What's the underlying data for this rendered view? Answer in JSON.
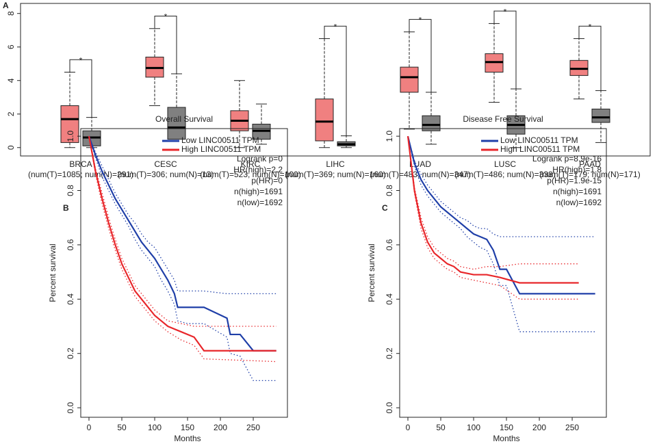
{
  "chart_data": [
    {
      "type": "box",
      "panel": "A",
      "categories": [
        "BRCA",
        "CESC",
        "KIRC",
        "LIHC",
        "LUAD",
        "LUSC",
        "PAAD"
      ],
      "sublabels": [
        "(num(T)=1085; num(N)=291)",
        "(num(T)=306; num(N)=13)",
        "(num(T)=523; num(N)=100)",
        "(num(T)=369; num(N)=160)",
        "(num(T)=483; num(N)=347)",
        "(num(T)=486; num(N)=338)",
        "(num(T)=179; num(N)=171)"
      ],
      "significance": [
        "*",
        "*",
        null,
        "*",
        "*",
        "*",
        "*"
      ],
      "significance_color": "#e8262a",
      "series": [
        {
          "color": "#f08080",
          "whislo": [
            0,
            2.5,
            0,
            0,
            1.1,
            2.7,
            2.9
          ],
          "q1": [
            0.3,
            4.2,
            1.0,
            0.4,
            3.3,
            4.5,
            4.3
          ],
          "med": [
            1.7,
            4.75,
            1.6,
            1.55,
            4.2,
            5.1,
            4.7
          ],
          "q3": [
            2.5,
            5.4,
            2.2,
            2.9,
            4.8,
            5.6,
            5.2
          ],
          "whishi": [
            4.5,
            7.1,
            4.0,
            6.5,
            6.9,
            7.4,
            6.5
          ]
        },
        {
          "color": "#808080",
          "whislo": [
            0,
            0.5,
            0.2,
            0,
            0.2,
            0,
            0.3
          ],
          "q1": [
            0.1,
            0.5,
            0.5,
            0.1,
            1.0,
            0.8,
            1.5
          ],
          "med": [
            0.6,
            1.2,
            1.0,
            0.2,
            1.35,
            1.35,
            1.8
          ],
          "q3": [
            1.0,
            2.4,
            1.4,
            0.35,
            1.9,
            1.9,
            2.3
          ],
          "whishi": [
            1.8,
            4.4,
            2.6,
            0.7,
            3.3,
            3.5,
            3.4
          ]
        }
      ],
      "ylim": [
        -0.5,
        8.6
      ],
      "yticks": [
        0,
        2,
        4,
        6,
        8
      ]
    },
    {
      "type": "survival",
      "panel": "B",
      "title": "Overall Survival",
      "xlabel": "Months",
      "ylabel": "Percent survival",
      "series": [
        {
          "name": "Low LINC00511 TPM",
          "color": "#1f3fa8",
          "x": [
            0,
            10,
            20,
            30,
            40,
            50,
            60,
            70,
            80,
            90,
            100,
            110,
            120,
            130,
            135,
            150,
            175,
            210,
            215,
            230,
            250,
            285
          ],
          "values": [
            1.0,
            0.93,
            0.87,
            0.82,
            0.77,
            0.73,
            0.69,
            0.65,
            0.61,
            0.58,
            0.55,
            0.51,
            0.47,
            0.42,
            0.37,
            0.37,
            0.37,
            0.33,
            0.27,
            0.27,
            0.21,
            0.21
          ],
          "ci_lower": [
            1.0,
            0.92,
            0.85,
            0.8,
            0.75,
            0.71,
            0.67,
            0.62,
            0.58,
            0.55,
            0.52,
            0.47,
            0.43,
            0.38,
            0.32,
            0.31,
            0.31,
            0.26,
            0.2,
            0.19,
            0.1,
            0.1
          ],
          "ci_upper": [
            1.0,
            0.94,
            0.89,
            0.84,
            0.79,
            0.75,
            0.71,
            0.68,
            0.64,
            0.61,
            0.59,
            0.55,
            0.51,
            0.47,
            0.43,
            0.43,
            0.43,
            0.42,
            0.42,
            0.42,
            0.42,
            0.42
          ]
        },
        {
          "name": "High LINC00511 TPM",
          "color": "#e8262a",
          "x": [
            0,
            10,
            20,
            30,
            40,
            50,
            60,
            70,
            80,
            90,
            100,
            110,
            120,
            140,
            160,
            175,
            285
          ],
          "values": [
            1.0,
            0.87,
            0.77,
            0.68,
            0.6,
            0.53,
            0.48,
            0.43,
            0.4,
            0.37,
            0.34,
            0.32,
            0.3,
            0.28,
            0.26,
            0.21,
            0.21
          ],
          "ci_lower": [
            1.0,
            0.86,
            0.75,
            0.66,
            0.58,
            0.51,
            0.46,
            0.41,
            0.38,
            0.35,
            0.32,
            0.3,
            0.28,
            0.25,
            0.23,
            0.18,
            0.17
          ],
          "ci_upper": [
            1.0,
            0.88,
            0.79,
            0.7,
            0.62,
            0.55,
            0.5,
            0.45,
            0.42,
            0.39,
            0.36,
            0.34,
            0.32,
            0.31,
            0.3,
            0.3,
            0.3
          ]
        }
      ],
      "annotations": [
        "Logrank p=0",
        "HR(high)=2.2",
        "p(HR)=0",
        "n(high)=1691",
        "n(low)=1692"
      ],
      "xlim": [
        -12.5,
        302
      ],
      "xticks": [
        0,
        50,
        100,
        150,
        200,
        250
      ],
      "ylim": [
        -0.035,
        1.028
      ],
      "yticks": [
        {
          "value": 0,
          "label": "0.0"
        },
        0.2,
        0.4,
        0.6,
        0.8,
        {
          "value": 1,
          "label": "1.0"
        }
      ]
    },
    {
      "type": "survival",
      "panel": "C",
      "title": "Disease Free Survival",
      "xlabel": "Months",
      "ylabel": "Percent survival",
      "series": [
        {
          "name": "Low LINC00511 TPM",
          "color": "#1f3fa8",
          "x": [
            0,
            10,
            20,
            30,
            40,
            50,
            60,
            70,
            80,
            90,
            100,
            110,
            120,
            130,
            140,
            150,
            170,
            285
          ],
          "values": [
            1.0,
            0.9,
            0.84,
            0.8,
            0.77,
            0.74,
            0.72,
            0.7,
            0.68,
            0.66,
            0.64,
            0.63,
            0.62,
            0.58,
            0.51,
            0.51,
            0.42,
            0.42
          ],
          "ci_lower": [
            1.0,
            0.89,
            0.82,
            0.78,
            0.75,
            0.72,
            0.7,
            0.68,
            0.66,
            0.63,
            0.61,
            0.59,
            0.58,
            0.53,
            0.45,
            0.45,
            0.28,
            0.28
          ],
          "ci_upper": [
            1.0,
            0.91,
            0.86,
            0.82,
            0.79,
            0.76,
            0.74,
            0.72,
            0.7,
            0.69,
            0.67,
            0.66,
            0.66,
            0.64,
            0.63,
            0.63,
            0.63,
            0.63
          ]
        },
        {
          "name": "High LINC00511 TPM",
          "color": "#e8262a",
          "x": [
            0,
            10,
            20,
            30,
            40,
            50,
            60,
            70,
            80,
            100,
            120,
            140,
            170,
            260
          ],
          "values": [
            1.0,
            0.8,
            0.68,
            0.61,
            0.57,
            0.55,
            0.53,
            0.52,
            0.5,
            0.49,
            0.49,
            0.48,
            0.46,
            0.46
          ],
          "ci_lower": [
            1.0,
            0.79,
            0.66,
            0.59,
            0.55,
            0.53,
            0.51,
            0.5,
            0.48,
            0.47,
            0.46,
            0.45,
            0.4,
            0.4
          ],
          "ci_upper": [
            1.0,
            0.81,
            0.7,
            0.63,
            0.59,
            0.57,
            0.55,
            0.54,
            0.52,
            0.51,
            0.52,
            0.52,
            0.53,
            0.53
          ]
        }
      ],
      "annotations": [
        "Logrank p=8.9e-16",
        "HR(high)=1.8",
        "p(HR)=1.9e-15",
        "n(high)=1691",
        "n(low)=1692"
      ],
      "xlim": [
        -12.5,
        302
      ],
      "xticks": [
        0,
        50,
        100,
        150,
        200,
        250
      ],
      "ylim": [
        -0.035,
        1.028
      ],
      "yticks": [
        {
          "value": 0,
          "label": "0.0"
        },
        0.2,
        0.4,
        0.6,
        0.8,
        {
          "value": 1,
          "label": "1.0"
        }
      ]
    }
  ]
}
